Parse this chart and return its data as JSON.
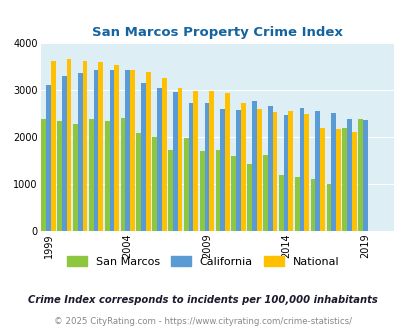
{
  "title": "San Marcos Property Crime Index",
  "years": [
    1999,
    2000,
    2001,
    2002,
    2003,
    2004,
    2005,
    2006,
    2007,
    2008,
    2009,
    2010,
    2011,
    2012,
    2013,
    2014,
    2015,
    2016,
    2017,
    2018,
    2019,
    2020
  ],
  "san_marcos": [
    2390,
    2330,
    2280,
    2390,
    2330,
    2400,
    2080,
    2000,
    1720,
    1980,
    1700,
    1730,
    1600,
    1430,
    1610,
    1200,
    1150,
    1100,
    1000,
    2180,
    2390,
    null
  ],
  "california": [
    3100,
    3300,
    3350,
    3420,
    3420,
    3420,
    3150,
    3050,
    2950,
    2730,
    2730,
    2600,
    2570,
    2760,
    2660,
    2470,
    2620,
    2550,
    2500,
    2390,
    2360,
    null
  ],
  "national": [
    3610,
    3660,
    3620,
    3600,
    3520,
    3420,
    3380,
    3260,
    3040,
    2970,
    2970,
    2940,
    2720,
    2600,
    2540,
    2560,
    2490,
    2180,
    2160,
    2100,
    null,
    null
  ],
  "colors": {
    "san_marcos": "#8dc63f",
    "california": "#5b9bd5",
    "national": "#ffc000"
  },
  "bg_color": "#ddeef5",
  "ylim": [
    0,
    4000
  ],
  "yticks": [
    0,
    1000,
    2000,
    3000,
    4000
  ],
  "xtick_labels": [
    "1999",
    "2004",
    "2009",
    "2014",
    "2019"
  ],
  "xtick_positions": [
    1999,
    2004,
    2009,
    2014,
    2019
  ],
  "footnote1": "Crime Index corresponds to incidents per 100,000 inhabitants",
  "footnote2": "© 2025 CityRating.com - https://www.cityrating.com/crime-statistics/",
  "title_color": "#1464a0",
  "footnote1_color": "#1a1a2e",
  "footnote2_color": "#888888"
}
